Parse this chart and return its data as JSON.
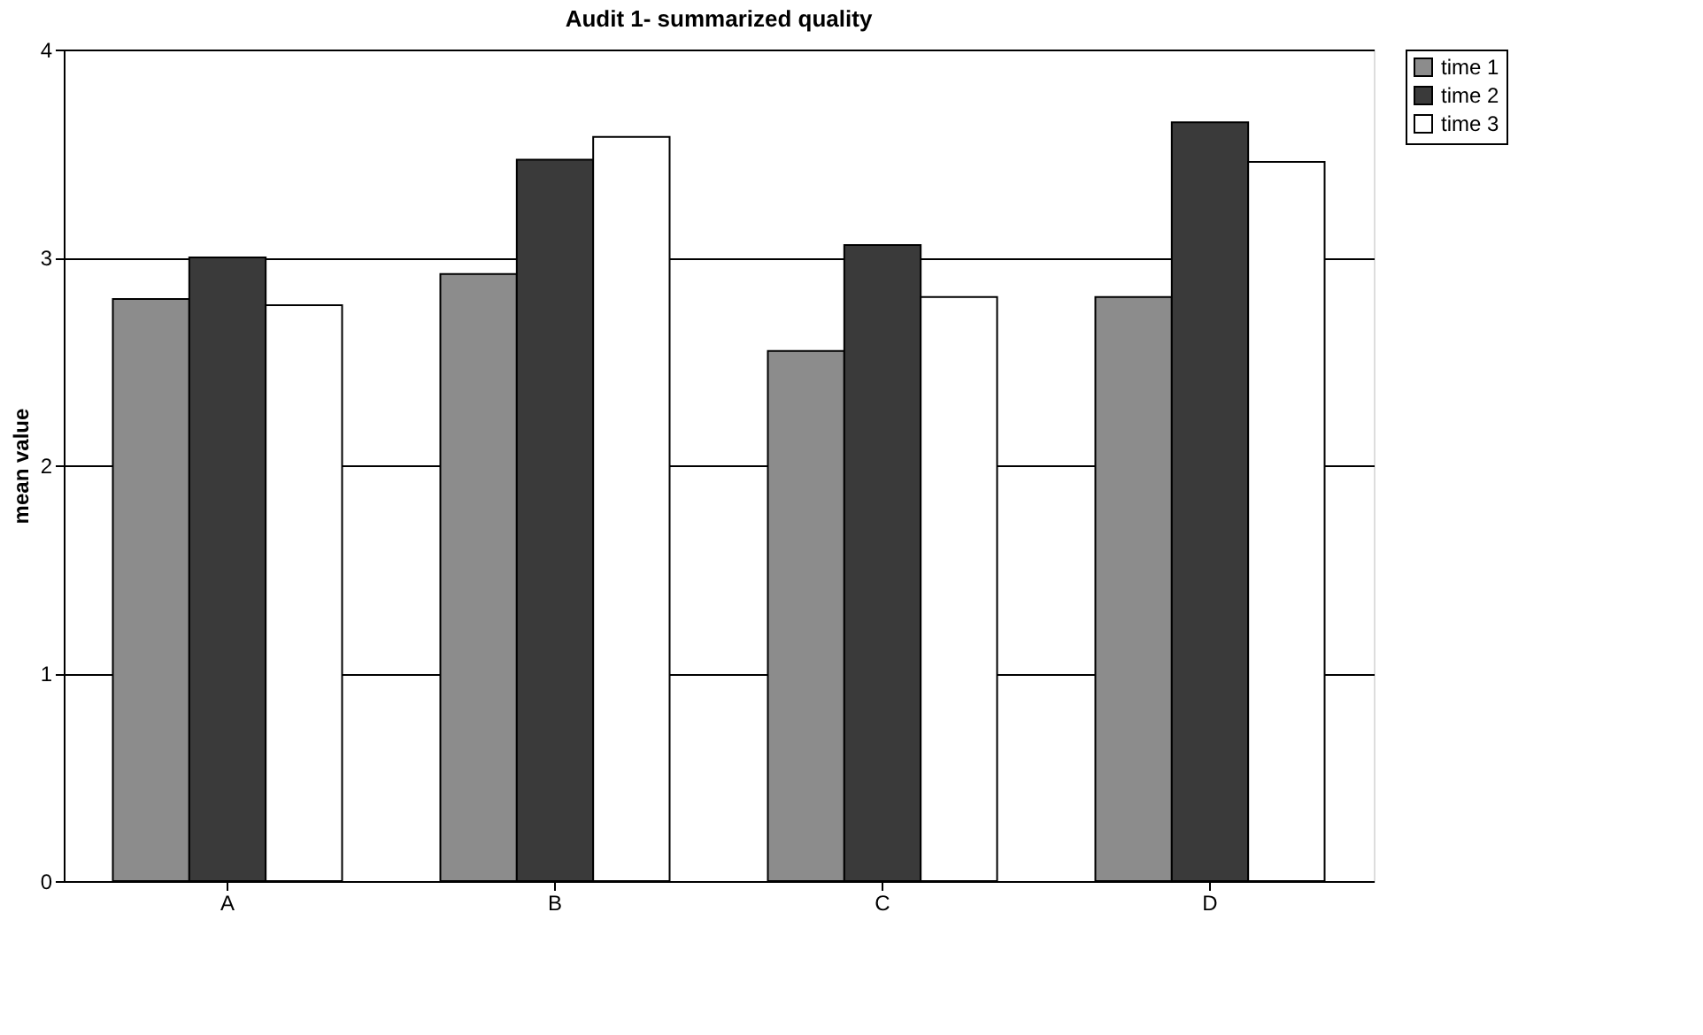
{
  "chart_data": {
    "type": "bar",
    "title": "Audit 1- summarized quality",
    "ylabel": "mean value",
    "categories": [
      "A",
      "B",
      "C",
      "D"
    ],
    "series": [
      {
        "name": "time 1",
        "color": "#8c8c8c",
        "values": [
          2.8,
          2.92,
          2.55,
          2.81
        ]
      },
      {
        "name": "time 2",
        "color": "#3a3a3a",
        "values": [
          3.0,
          3.47,
          3.06,
          3.65
        ]
      },
      {
        "name": "time 3",
        "color": "#ffffff",
        "values": [
          2.77,
          3.58,
          2.81,
          3.46
        ]
      }
    ],
    "ylim": [
      0,
      4
    ],
    "yticks": [
      0,
      1,
      2,
      3,
      4
    ],
    "grid": "y",
    "legend": "right"
  }
}
